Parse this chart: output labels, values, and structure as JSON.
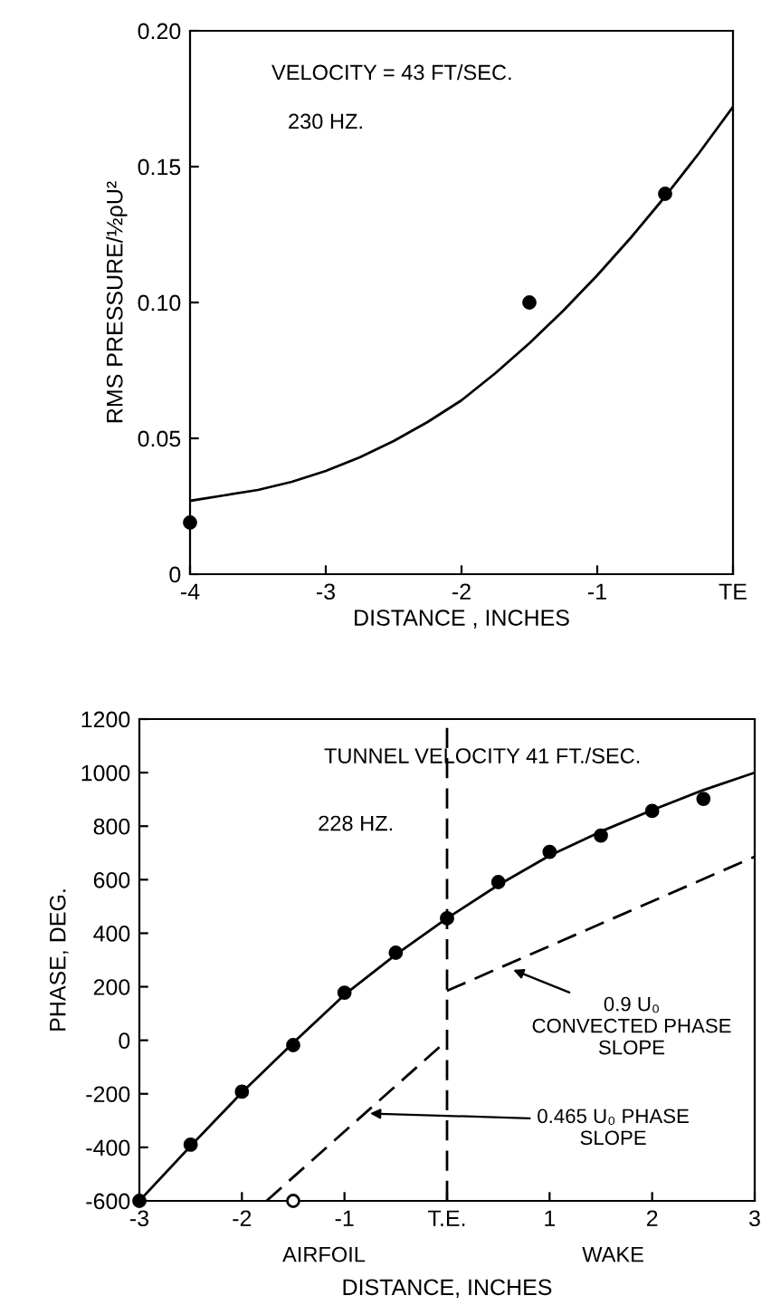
{
  "chart_data": [
    {
      "type": "scatter",
      "ylabel": "RMS PRESSURE/½ρU²",
      "xlabel": "DISTANCE , INCHES",
      "xlim": [
        -4,
        0
      ],
      "ylim": [
        0,
        0.2
      ],
      "xticks": [
        -4,
        -3,
        -2,
        -1,
        {
          "value": 0,
          "label": "TE"
        }
      ],
      "yticks": [
        0,
        {
          "value": 0.05,
          "label": "0.05"
        },
        {
          "value": 0.1,
          "label": "0.10"
        },
        {
          "value": 0.15,
          "label": "0.15"
        },
        {
          "value": 0.2,
          "label": "0.20"
        }
      ],
      "grid": false,
      "legend": false,
      "annotations": [
        "VELOCITY = 43 FT/SEC.",
        "230 HZ."
      ],
      "series": [
        {
          "marker": "circle",
          "color": "#000000",
          "x": [
            -4,
            -1.5,
            -0.5
          ],
          "values": [
            0.019,
            0.1,
            0.14
          ]
        },
        {
          "type": "line",
          "marker": "none",
          "line_style": "solid",
          "color": "#000000",
          "x": [
            -4,
            -3.75,
            -3.5,
            -3.25,
            -3,
            -2.75,
            -2.5,
            -2.25,
            -2,
            -1.75,
            -1.5,
            -1.25,
            -1,
            -0.75,
            -0.5,
            -0.25,
            0
          ],
          "values": [
            0.027,
            0.029,
            0.031,
            0.034,
            0.038,
            0.043,
            0.049,
            0.056,
            0.064,
            0.074,
            0.085,
            0.097,
            0.11,
            0.124,
            0.139,
            0.155,
            0.172
          ]
        }
      ]
    },
    {
      "type": "scatter",
      "ylabel": "PHASE, DEG.",
      "xlabel": "DISTANCE, INCHES",
      "xlim": [
        -3,
        3
      ],
      "ylim": [
        -600,
        1200
      ],
      "xticks": [
        -3,
        -2,
        -1,
        {
          "value": 0,
          "label": "T.E."
        },
        1,
        2,
        3
      ],
      "yticks": [
        -600,
        -400,
        -200,
        0,
        200,
        400,
        600,
        800,
        1000,
        1200
      ],
      "grid": false,
      "legend": false,
      "ref_lines": [
        {
          "axis": "x",
          "value": 0,
          "line_style": "dashed",
          "color": "#000000"
        }
      ],
      "annotations": [
        "TUNNEL VELOCITY 41 FT./SEC.",
        "228 HZ.",
        "AIRFOIL",
        "WAKE",
        {
          "text": "0.9 U₀\nCONVECTED PHASE\nSLOPE",
          "x": 0.6,
          "y": 270
        },
        {
          "text": "0.465 U₀ PHASE\nSLOPE",
          "x": -0.8,
          "y": -273
        }
      ],
      "series": [
        {
          "marker": "circle",
          "color": "#000000",
          "x": [
            -3,
            -2.5,
            -2,
            -1.5,
            -1,
            -0.5,
            0,
            0.5,
            1,
            1.5,
            2,
            2.5
          ],
          "values": [
            -600,
            -390,
            -192,
            -18,
            178,
            327,
            456,
            591,
            704,
            765,
            857,
            902
          ]
        },
        {
          "marker": "circle",
          "color": "#ffffff",
          "x": [
            -1.5
          ],
          "values": [
            -600
          ]
        },
        {
          "type": "line",
          "marker": "none",
          "line_style": "solid",
          "color": "#000000",
          "x": [
            -3,
            -2.5,
            -2,
            -1.5,
            -1,
            -0.5,
            0,
            0.5,
            1,
            1.5,
            2,
            2.5,
            3
          ],
          "values": [
            -600,
            -395,
            -195,
            -10,
            170,
            320,
            456,
            580,
            690,
            780,
            860,
            935,
            1000
          ]
        },
        {
          "type": "line",
          "marker": "none",
          "line_style": "dashed",
          "color": "#000000",
          "x": [
            0,
            3
          ],
          "values": [
            185,
            686
          ]
        },
        {
          "type": "line",
          "marker": "none",
          "line_style": "dashed",
          "color": "#000000",
          "x": [
            -1.76,
            0
          ],
          "values": [
            -600,
            0
          ]
        }
      ]
    }
  ]
}
